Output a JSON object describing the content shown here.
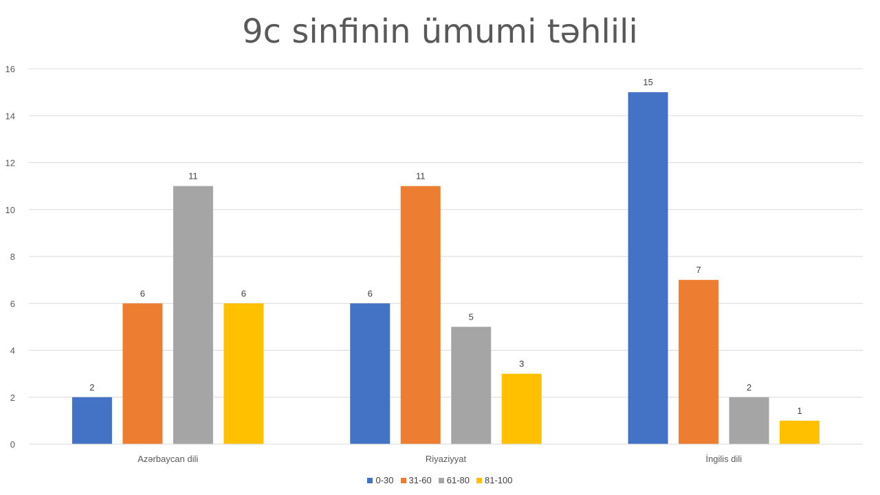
{
  "chart_data": {
    "type": "bar",
    "title": "9c sinfinin ümumi təhlili",
    "categories": [
      "Azərbaycan dili",
      "Riyaziyyat",
      "İngilis dili"
    ],
    "series": [
      {
        "name": "0-30",
        "color": "#4472C4",
        "values": [
          2,
          6,
          15
        ]
      },
      {
        "name": "31-60",
        "color": "#ED7D31",
        "values": [
          6,
          11,
          7
        ]
      },
      {
        "name": "61-80",
        "color": "#A5A5A5",
        "values": [
          11,
          5,
          2
        ]
      },
      {
        "name": "81-100",
        "color": "#FFC000",
        "values": [
          6,
          3,
          1
        ]
      }
    ],
    "ylim": [
      0,
      16
    ],
    "yticks": [
      0,
      2,
      4,
      6,
      8,
      10,
      12,
      14,
      16
    ],
    "grid": true,
    "legend_position": "bottom",
    "data_labels": true
  }
}
